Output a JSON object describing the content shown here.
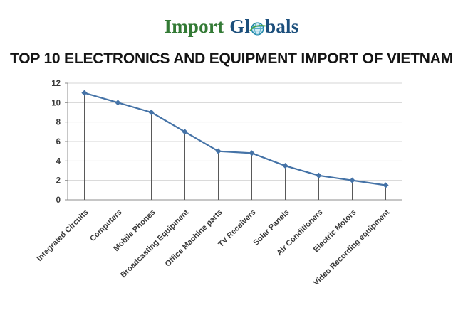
{
  "logo": {
    "part1": "Import",
    "part2": "Gl",
    "part3": "bals",
    "colors": {
      "import_green": "#337A35",
      "globals_navy": "#1C4F7C",
      "globe_teal": "#1F86A8",
      "globe_fill": "#D3ECF5",
      "globe_lines": "#58AECB",
      "globe_green": "#4DA53C"
    }
  },
  "title": "TOP 10 ELECTRONICS AND EQUIPMENT IMPORT OF VIETNAM",
  "chart_data": {
    "type": "line",
    "title": "TOP 10 ELECTRONICS AND EQUIPMENT IMPORT OF VIETNAM",
    "categories": [
      "Integrated Circuits",
      "Computers",
      "Mobile Phones",
      "Broadcasting Equipment",
      "Office Machine parts",
      "TV Receivers",
      "Solar Panels",
      "Air Conditioners",
      "Electric Motors",
      "Video Recording equipment"
    ],
    "values": [
      11,
      10,
      9,
      7,
      5,
      4.8,
      3.5,
      2.5,
      2,
      1.5
    ],
    "xlabel": "",
    "ylabel": "",
    "ylim": [
      0,
      12
    ],
    "ytick_step": 2,
    "grid": true,
    "legend_position": "none",
    "marker": "diamond",
    "drop_lines": true,
    "x_label_rotation_deg": 45,
    "colors": {
      "line": "#4573A7",
      "gridline": "#D4D4D4",
      "dropline": "#595959",
      "axis": "#8C8C8C",
      "tick_label": "#3A3A3A"
    }
  }
}
